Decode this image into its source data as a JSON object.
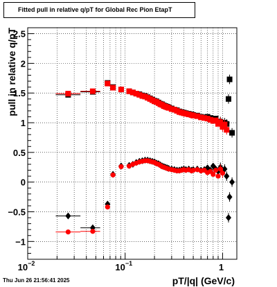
{
  "canvas": {
    "timestamp": "Thu Jun 26 21:56:41 2025"
  },
  "chart_data": {
    "type": "scatter",
    "title": "Fitted pull in relative q/pT for Global Rec Pion EtapT",
    "xlabel": "pT/|q| (GeV/c)",
    "ylabel": "pull in relative q/pT",
    "x_scale": "log",
    "xlim": [
      0.01,
      1.4
    ],
    "ylim": [
      -1.3,
      2.6
    ],
    "grid": true,
    "x_ticks": [
      {
        "v": 0.01,
        "base": "10",
        "exp": "−2"
      },
      {
        "v": 0.1,
        "base": "10",
        "exp": "−1"
      },
      {
        "v": 1,
        "base": "1",
        "exp": ""
      }
    ],
    "y_ticks": [
      {
        "v": -1,
        "label": "−1"
      },
      {
        "v": -0.5,
        "label": "−0.5"
      },
      {
        "v": 0,
        "label": "0"
      },
      {
        "v": 0.5,
        "label": "0.5"
      },
      {
        "v": 1,
        "label": "1"
      },
      {
        "v": 1.5,
        "label": "1.5"
      },
      {
        "v": 2,
        "label": "2"
      },
      {
        "v": 2.5,
        "label": "2.5"
      }
    ],
    "series": [
      {
        "marker": "square",
        "color": "#000000",
        "role": "sigma",
        "points": [
          [
            0.026,
            1.47
          ],
          [
            0.0465,
            1.52
          ],
          [
            0.066,
            1.67
          ],
          [
            0.075,
            1.6
          ],
          [
            0.091,
            1.56
          ],
          [
            0.11,
            1.53
          ],
          [
            0.12,
            1.51
          ],
          [
            0.13,
            1.49
          ],
          [
            0.14,
            1.48
          ],
          [
            0.15,
            1.46
          ],
          [
            0.16,
            1.45
          ],
          [
            0.17,
            1.43
          ],
          [
            0.18,
            1.41
          ],
          [
            0.19,
            1.39
          ],
          [
            0.2,
            1.37
          ],
          [
            0.21,
            1.36
          ],
          [
            0.22,
            1.34
          ],
          [
            0.23,
            1.32
          ],
          [
            0.24,
            1.31
          ],
          [
            0.25,
            1.29
          ],
          [
            0.26,
            1.28
          ],
          [
            0.27,
            1.27
          ],
          [
            0.28,
            1.26
          ],
          [
            0.3,
            1.24
          ],
          [
            0.32,
            1.22
          ],
          [
            0.34,
            1.21
          ],
          [
            0.36,
            1.19
          ],
          [
            0.38,
            1.18
          ],
          [
            0.4,
            1.17
          ],
          [
            0.42,
            1.16
          ],
          [
            0.45,
            1.15
          ],
          [
            0.48,
            1.14
          ],
          [
            0.5,
            1.13
          ],
          [
            0.55,
            1.12
          ],
          [
            0.6,
            1.1
          ],
          [
            0.65,
            1.09
          ],
          [
            0.7,
            1.1
          ],
          [
            0.75,
            1.08
          ],
          [
            0.8,
            1.05
          ],
          [
            0.85,
            1.07
          ],
          [
            0.9,
            1.0
          ],
          [
            0.95,
            1.02
          ],
          [
            1.0,
            0.95
          ],
          [
            1.05,
            1.0
          ],
          [
            1.1,
            0.98
          ],
          [
            1.15,
            1.4
          ],
          [
            1.18,
            1.73
          ],
          [
            1.25,
            0.83
          ]
        ]
      },
      {
        "marker": "square",
        "color": "#ff0000",
        "role": "sigma",
        "points": [
          [
            0.026,
            1.49
          ],
          [
            0.0465,
            1.53
          ],
          [
            0.066,
            1.66
          ],
          [
            0.075,
            1.59
          ],
          [
            0.091,
            1.56
          ],
          [
            0.11,
            1.53
          ],
          [
            0.12,
            1.51
          ],
          [
            0.13,
            1.49
          ],
          [
            0.14,
            1.47
          ],
          [
            0.15,
            1.45
          ],
          [
            0.16,
            1.44
          ],
          [
            0.17,
            1.42
          ],
          [
            0.18,
            1.4
          ],
          [
            0.19,
            1.38
          ],
          [
            0.2,
            1.36
          ],
          [
            0.21,
            1.35
          ],
          [
            0.22,
            1.33
          ],
          [
            0.23,
            1.31
          ],
          [
            0.24,
            1.3
          ],
          [
            0.25,
            1.28
          ],
          [
            0.26,
            1.27
          ],
          [
            0.27,
            1.26
          ],
          [
            0.28,
            1.25
          ],
          [
            0.3,
            1.23
          ],
          [
            0.32,
            1.22
          ],
          [
            0.34,
            1.2
          ],
          [
            0.36,
            1.18
          ],
          [
            0.38,
            1.17
          ],
          [
            0.4,
            1.16
          ],
          [
            0.42,
            1.15
          ],
          [
            0.45,
            1.14
          ],
          [
            0.48,
            1.13
          ],
          [
            0.5,
            1.12
          ],
          [
            0.55,
            1.11
          ],
          [
            0.6,
            1.09
          ],
          [
            0.65,
            1.08
          ],
          [
            0.7,
            1.07
          ],
          [
            0.75,
            1.05
          ],
          [
            0.8,
            1.03
          ],
          [
            0.85,
            1.04
          ],
          [
            0.9,
            0.98
          ],
          [
            0.95,
            1.01
          ],
          [
            1.0,
            0.93
          ],
          [
            1.05,
            0.97
          ],
          [
            1.1,
            0.88
          ]
        ]
      },
      {
        "marker": "diamond",
        "color": "#000000",
        "role": "mean",
        "points": [
          [
            0.026,
            -0.57
          ],
          [
            0.0465,
            -0.77
          ],
          [
            0.066,
            -0.37
          ],
          [
            0.075,
            0.13
          ],
          [
            0.091,
            0.27
          ],
          [
            0.11,
            0.28
          ],
          [
            0.12,
            0.3
          ],
          [
            0.13,
            0.33
          ],
          [
            0.14,
            0.35
          ],
          [
            0.15,
            0.36
          ],
          [
            0.16,
            0.37
          ],
          [
            0.17,
            0.37
          ],
          [
            0.18,
            0.36
          ],
          [
            0.19,
            0.35
          ],
          [
            0.2,
            0.34
          ],
          [
            0.21,
            0.32
          ],
          [
            0.22,
            0.31
          ],
          [
            0.23,
            0.29
          ],
          [
            0.24,
            0.27
          ],
          [
            0.25,
            0.26
          ],
          [
            0.26,
            0.25
          ],
          [
            0.27,
            0.24
          ],
          [
            0.28,
            0.23
          ],
          [
            0.3,
            0.22
          ],
          [
            0.32,
            0.21
          ],
          [
            0.34,
            0.2
          ],
          [
            0.36,
            0.2
          ],
          [
            0.38,
            0.21
          ],
          [
            0.4,
            0.22
          ],
          [
            0.42,
            0.21
          ],
          [
            0.45,
            0.22
          ],
          [
            0.48,
            0.2
          ],
          [
            0.5,
            0.21
          ],
          [
            0.55,
            0.22
          ],
          [
            0.6,
            0.2
          ],
          [
            0.65,
            0.21
          ],
          [
            0.7,
            0.24
          ],
          [
            0.75,
            0.2
          ],
          [
            0.8,
            0.27
          ],
          [
            0.85,
            0.22
          ],
          [
            0.9,
            0.18
          ],
          [
            0.95,
            0.25
          ],
          [
            1.0,
            0.18
          ],
          [
            1.05,
            0.22
          ],
          [
            1.1,
            0.1
          ],
          [
            1.15,
            -0.6
          ],
          [
            1.18,
            -0.25
          ],
          [
            1.25,
            0.0
          ]
        ]
      },
      {
        "marker": "circle",
        "color": "#ff0000",
        "role": "mean",
        "points": [
          [
            0.026,
            -0.84
          ],
          [
            0.0465,
            -0.83
          ],
          [
            0.066,
            -0.42
          ],
          [
            0.075,
            0.12
          ],
          [
            0.091,
            0.26
          ],
          [
            0.11,
            0.27
          ],
          [
            0.12,
            0.3
          ],
          [
            0.13,
            0.32
          ],
          [
            0.14,
            0.34
          ],
          [
            0.15,
            0.35
          ],
          [
            0.16,
            0.36
          ],
          [
            0.17,
            0.36
          ],
          [
            0.18,
            0.35
          ],
          [
            0.19,
            0.34
          ],
          [
            0.2,
            0.33
          ],
          [
            0.21,
            0.31
          ],
          [
            0.22,
            0.3
          ],
          [
            0.23,
            0.28
          ],
          [
            0.24,
            0.26
          ],
          [
            0.25,
            0.25
          ],
          [
            0.26,
            0.24
          ],
          [
            0.27,
            0.23
          ],
          [
            0.28,
            0.22
          ],
          [
            0.3,
            0.21
          ],
          [
            0.32,
            0.2
          ],
          [
            0.34,
            0.19
          ],
          [
            0.36,
            0.19
          ],
          [
            0.38,
            0.2
          ],
          [
            0.4,
            0.21
          ],
          [
            0.42,
            0.2
          ],
          [
            0.45,
            0.21
          ],
          [
            0.48,
            0.19
          ],
          [
            0.5,
            0.2
          ],
          [
            0.55,
            0.21
          ],
          [
            0.6,
            0.19
          ],
          [
            0.65,
            0.2
          ],
          [
            0.7,
            0.16
          ],
          [
            0.75,
            0.18
          ],
          [
            0.8,
            0.13
          ],
          [
            0.85,
            0.2
          ],
          [
            0.9,
            0.1
          ],
          [
            0.95,
            0.22
          ],
          [
            1.0,
            0.15
          ]
        ]
      }
    ]
  }
}
